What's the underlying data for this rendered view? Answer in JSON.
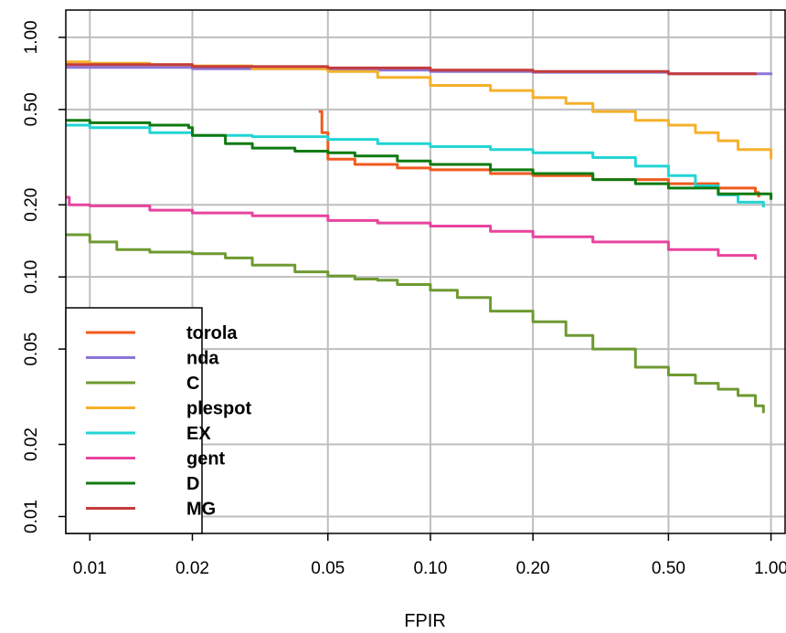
{
  "chart_data": {
    "type": "line",
    "title": "",
    "xlabel": "FPIR",
    "ylabel": "",
    "x_scale": "log",
    "y_scale": "log",
    "xlim": [
      0.0085,
      1.1
    ],
    "ylim": [
      0.0085,
      1.3
    ],
    "x_ticks": [
      0.01,
      0.02,
      0.05,
      0.1,
      0.2,
      0.5,
      1.0
    ],
    "x_tick_labels": [
      "0.01",
      "0.02",
      "0.05",
      "0.10",
      "0.20",
      "0.50",
      "1.00"
    ],
    "y_ticks": [
      0.01,
      0.02,
      0.05,
      0.1,
      0.2,
      0.5,
      1.0
    ],
    "y_tick_labels": [
      "0.01",
      "0.02",
      "0.05",
      "0.10",
      "0.20",
      "0.50",
      "1.00"
    ],
    "grid": true,
    "legend_position": "bottom-left",
    "series": [
      {
        "name": "torola",
        "color": "#f05a1e",
        "x": [
          0.047,
          0.048,
          0.05,
          0.06,
          0.08,
          0.1,
          0.15,
          0.2,
          0.3,
          0.5,
          0.7,
          0.9,
          0.92
        ],
        "y": [
          0.49,
          0.4,
          0.31,
          0.295,
          0.285,
          0.28,
          0.27,
          0.265,
          0.255,
          0.245,
          0.235,
          0.225,
          0.215
        ]
      },
      {
        "name": "nda",
        "color": "#8c74d8",
        "x": [
          0.0085,
          0.02,
          0.05,
          0.1,
          0.2,
          0.5,
          1.0
        ],
        "y": [
          0.75,
          0.74,
          0.73,
          0.72,
          0.715,
          0.705,
          0.695
        ]
      },
      {
        "name": "C",
        "color": "#6e9a32",
        "x": [
          0.0085,
          0.01,
          0.012,
          0.015,
          0.02,
          0.025,
          0.03,
          0.04,
          0.05,
          0.06,
          0.07,
          0.08,
          0.1,
          0.12,
          0.15,
          0.2,
          0.25,
          0.3,
          0.4,
          0.5,
          0.6,
          0.7,
          0.8,
          0.9,
          0.95
        ],
        "y": [
          0.15,
          0.14,
          0.13,
          0.127,
          0.125,
          0.12,
          0.112,
          0.105,
          0.101,
          0.098,
          0.097,
          0.093,
          0.088,
          0.082,
          0.072,
          0.065,
          0.057,
          0.05,
          0.042,
          0.039,
          0.036,
          0.034,
          0.032,
          0.029,
          0.027
        ]
      },
      {
        "name": "plespot",
        "color": "#f5b02a",
        "x": [
          0.0085,
          0.01,
          0.015,
          0.02,
          0.03,
          0.05,
          0.07,
          0.1,
          0.15,
          0.2,
          0.25,
          0.3,
          0.4,
          0.5,
          0.6,
          0.7,
          0.8,
          1.0
        ],
        "y": [
          0.79,
          0.78,
          0.77,
          0.76,
          0.74,
          0.72,
          0.68,
          0.63,
          0.6,
          0.56,
          0.53,
          0.49,
          0.45,
          0.43,
          0.4,
          0.37,
          0.34,
          0.31
        ]
      },
      {
        "name": "EX",
        "color": "#22d4d4",
        "x": [
          0.0085,
          0.01,
          0.015,
          0.02,
          0.03,
          0.05,
          0.07,
          0.1,
          0.15,
          0.2,
          0.3,
          0.4,
          0.5,
          0.6,
          0.7,
          0.8,
          0.95
        ],
        "y": [
          0.43,
          0.42,
          0.4,
          0.39,
          0.385,
          0.375,
          0.36,
          0.35,
          0.34,
          0.33,
          0.315,
          0.29,
          0.265,
          0.24,
          0.22,
          0.205,
          0.195
        ]
      },
      {
        "name": "gent",
        "color": "#e8439e",
        "x": [
          0.0085,
          0.0087,
          0.01,
          0.015,
          0.02,
          0.03,
          0.05,
          0.07,
          0.1,
          0.15,
          0.2,
          0.3,
          0.5,
          0.7,
          0.9
        ],
        "y": [
          0.215,
          0.2,
          0.198,
          0.19,
          0.185,
          0.18,
          0.172,
          0.168,
          0.163,
          0.155,
          0.147,
          0.14,
          0.13,
          0.123,
          0.118
        ]
      },
      {
        "name": "D",
        "color": "#0f7a10",
        "x": [
          0.0085,
          0.01,
          0.015,
          0.0195,
          0.02,
          0.025,
          0.03,
          0.04,
          0.05,
          0.06,
          0.08,
          0.1,
          0.15,
          0.2,
          0.3,
          0.4,
          0.5,
          0.7,
          1.0
        ],
        "y": [
          0.45,
          0.44,
          0.43,
          0.42,
          0.39,
          0.36,
          0.345,
          0.335,
          0.33,
          0.32,
          0.305,
          0.295,
          0.28,
          0.27,
          0.255,
          0.245,
          0.235,
          0.222,
          0.21
        ]
      },
      {
        "name": "MG",
        "color": "#c43c3c",
        "x": [
          0.0085,
          0.02,
          0.05,
          0.1,
          0.2,
          0.5,
          0.9
        ],
        "y": [
          0.77,
          0.755,
          0.745,
          0.73,
          0.72,
          0.705,
          0.695
        ]
      }
    ]
  }
}
